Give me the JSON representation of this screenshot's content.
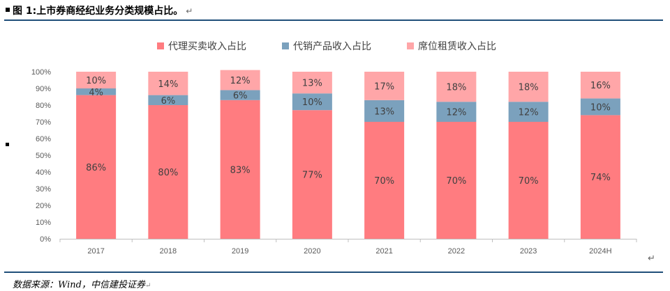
{
  "figure": {
    "title": "图 1:上市券商经纪业务分类规模占比。",
    "source": "数据来源：Wind，中信建投证券"
  },
  "chart_data": {
    "type": "bar",
    "stacked": true,
    "percent": true,
    "categories": [
      "2017",
      "2018",
      "2019",
      "2020",
      "2021",
      "2022",
      "2023",
      "2024H"
    ],
    "series": [
      {
        "name": "代理买卖收入占比",
        "color": "#ff7c80",
        "values": [
          86,
          80,
          83,
          77,
          70,
          70,
          70,
          74
        ]
      },
      {
        "name": "代销产品收入占比",
        "color": "#7ba1bd",
        "values": [
          4,
          6,
          6,
          10,
          13,
          12,
          12,
          10
        ]
      },
      {
        "name": "席位租赁收入占比",
        "color": "#ffa6a8",
        "values": [
          10,
          14,
          12,
          13,
          17,
          18,
          18,
          16
        ]
      }
    ],
    "ylim": [
      0,
      100
    ],
    "yticks": [
      "0%",
      "10%",
      "20%",
      "30%",
      "40%",
      "50%",
      "60%",
      "70%",
      "80%",
      "90%",
      "100%"
    ],
    "legend_position": "top",
    "grid": false
  }
}
